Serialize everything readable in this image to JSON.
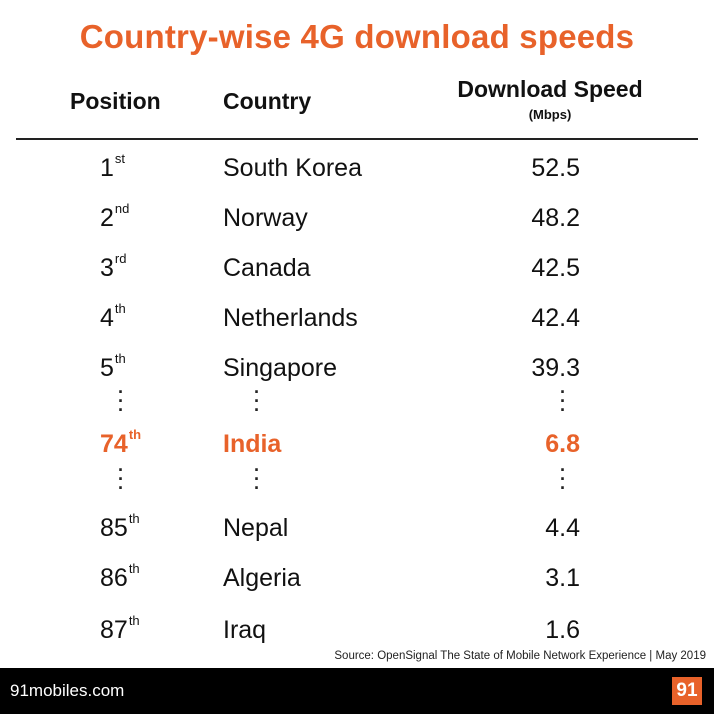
{
  "title": "Country-wise 4G download speeds",
  "headers": {
    "position": "Position",
    "country": "Country",
    "speed": "Download Speed",
    "speed_unit": "(Mbps)"
  },
  "chart_data": {
    "type": "table",
    "title": "Country-wise 4G download speeds",
    "columns": [
      "Position",
      "Country",
      "Download Speed (Mbps)"
    ],
    "rows": [
      {
        "pos": "1",
        "suffix": "st",
        "country": "South Korea",
        "speed": "52.5"
      },
      {
        "pos": "2",
        "suffix": "nd",
        "country": "Norway",
        "speed": "48.2"
      },
      {
        "pos": "3",
        "suffix": "rd",
        "country": "Canada",
        "speed": "42.5"
      },
      {
        "pos": "4",
        "suffix": "th",
        "country": "Netherlands",
        "speed": "42.4"
      },
      {
        "pos": "5",
        "suffix": "th",
        "country": "Singapore",
        "speed": "39.3"
      },
      {
        "pos": "74",
        "suffix": "th",
        "country": "India",
        "speed": "6.8",
        "highlight": true
      },
      {
        "pos": "85",
        "suffix": "th",
        "country": "Nepal",
        "speed": "4.4"
      },
      {
        "pos": "86",
        "suffix": "th",
        "country": "Algeria",
        "speed": "3.1"
      },
      {
        "pos": "87",
        "suffix": "th",
        "country": "Iraq",
        "speed": "1.6"
      }
    ]
  },
  "ellipsis": "·\n·\n·",
  "source": "Source: OpenSignal The State of Mobile Network Experience | May 2019",
  "footer": {
    "site": "91mobiles.com",
    "logo": "91"
  },
  "colors": {
    "accent": "#e8622a",
    "text": "#111111",
    "footer_bg": "#000000"
  }
}
